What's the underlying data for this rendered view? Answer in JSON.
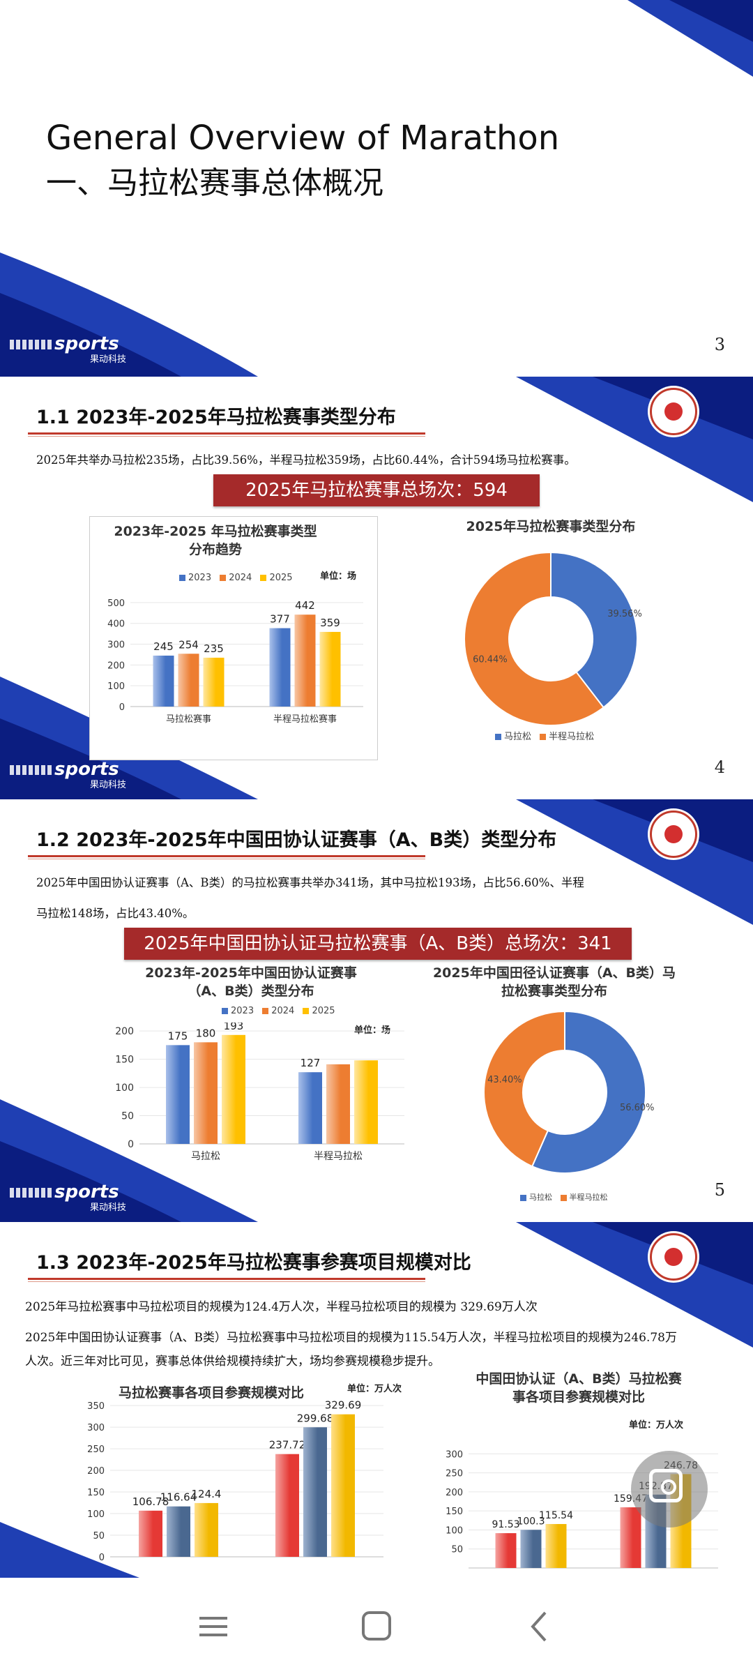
{
  "slide1": {
    "title_en": "General Overview of Marathon",
    "title_cn": "一、马拉松赛事总体概况",
    "logo": "sports",
    "logo_sub": "果动科技",
    "page": "3"
  },
  "slide2": {
    "section_title": "1.1 2023年-2025年马拉松赛事类型分布",
    "desc": "2025年共举办马拉松235场，占比39.56%，半程马拉松359场，占比60.44%，合计594场马拉松赛事。",
    "banner": "2025年马拉松赛事总场次：594",
    "logo": "sports",
    "logo_sub": "果动科技",
    "page": "4"
  },
  "slide3": {
    "section_title": "1.2 2023年-2025年中国田协认证赛事（A、B类）类型分布",
    "desc_line1": "2025年中国田协认证赛事（A、B类）的马拉松赛事共举办341场，其中马拉松193场，占比56.60%、半程",
    "desc_line2": "马拉松148场，占比43.40%。",
    "banner": "2025年中国田协认证马拉松赛事（A、B类）总场次：341",
    "logo": "sports",
    "logo_sub": "果动科技",
    "page": "5"
  },
  "slide4": {
    "section_title": "1.3 2023年-2025年马拉松赛事参赛项目规模对比",
    "desc_line1": "2025年马拉松赛事中马拉松项目的规模为124.4万人次，半程马拉松项目的规模为 329.69万人次",
    "desc_line2": "2025年中国田协认证赛事（A、B类）马拉松赛事中马拉松项目的规模为115.54万人次，半程马拉松项目的规模为246.78万",
    "desc_line3": "人次。近三年对比可见，赛事总体供给规模持续扩大，场均参赛规模稳步提升。"
  },
  "colors": {
    "y2023": "#4472c4",
    "y2024": "#ed7d31",
    "y2025": "#ffc000",
    "red": "#e53935",
    "steel": "#4a6890",
    "gold": "#f2b800"
  },
  "chart_data": [
    {
      "type": "bar",
      "title": "2023年-2025 年马拉松赛事类型分布趋势",
      "unit": "单位：场",
      "categories": [
        "马拉松赛事",
        "半程马拉松赛事"
      ],
      "series": [
        {
          "name": "2023",
          "values": [
            245,
            377
          ]
        },
        {
          "name": "2024",
          "values": [
            254,
            442
          ]
        },
        {
          "name": "2025",
          "values": [
            235,
            359
          ]
        }
      ],
      "yticks": [
        "0",
        "100",
        "200",
        "300",
        "400",
        "500"
      ],
      "ylim": [
        0,
        550
      ]
    },
    {
      "type": "pie",
      "title": "2025年马拉松赛事类型分布",
      "labels": [
        "马拉松",
        "半程马拉松"
      ],
      "values": [
        39.56,
        60.44
      ],
      "value_labels": [
        "39.56%",
        "60.44%"
      ]
    },
    {
      "type": "bar",
      "title": "2023年-2025年中国田协认证赛事（A、B类）类型分布",
      "unit": "单位：场",
      "categories": [
        "马拉松",
        "半程马拉松"
      ],
      "series": [
        {
          "name": "2023",
          "values": [
            175,
            127
          ]
        },
        {
          "name": "2024",
          "values": [
            180,
            141
          ]
        },
        {
          "name": "2025",
          "values": [
            193,
            148
          ]
        }
      ],
      "data_labels": [
        [
          "175",
          "127"
        ],
        [
          "180",
          ""
        ],
        [
          "193",
          ""
        ]
      ],
      "yticks": [
        "0",
        "50",
        "100",
        "150",
        "200"
      ],
      "ylim": [
        0,
        215
      ]
    },
    {
      "type": "pie",
      "title": "2025年中国田径认证赛事（A、B类）马拉松赛事类型分布",
      "labels": [
        "马拉松",
        "半程马拉松"
      ],
      "values": [
        56.6,
        43.4
      ],
      "value_labels": [
        "56.60%",
        "43.40%"
      ]
    },
    {
      "type": "bar",
      "title": "马拉松赛事各项目参赛规模对比",
      "unit": "单位：万人次",
      "series": [
        {
          "values": [
            106.78,
            237.72
          ]
        },
        {
          "values": [
            116.64,
            299.68
          ]
        },
        {
          "values": [
            124.4,
            329.69
          ]
        }
      ],
      "yticks": [
        "0",
        "50",
        "100",
        "150",
        "200",
        "250",
        "300",
        "350"
      ],
      "ylim": [
        0,
        355
      ]
    },
    {
      "type": "bar",
      "title": "中国田协认证（A、B类）马拉松赛事各项目参赛规模对比",
      "unit": "单位：万人次",
      "series": [
        {
          "values": [
            91.53,
            159.47
          ]
        },
        {
          "values": [
            100.3,
            192.87
          ]
        },
        {
          "values": [
            115.54,
            246.78
          ]
        }
      ],
      "data_labels": [
        [
          "91.53",
          "159.47"
        ],
        [
          "100.3",
          "192.87"
        ],
        [
          "115.54",
          "246.78"
        ]
      ],
      "yticks": [
        "50",
        "100",
        "150",
        "200",
        "250",
        "300"
      ],
      "ylim": [
        0,
        330
      ]
    }
  ]
}
